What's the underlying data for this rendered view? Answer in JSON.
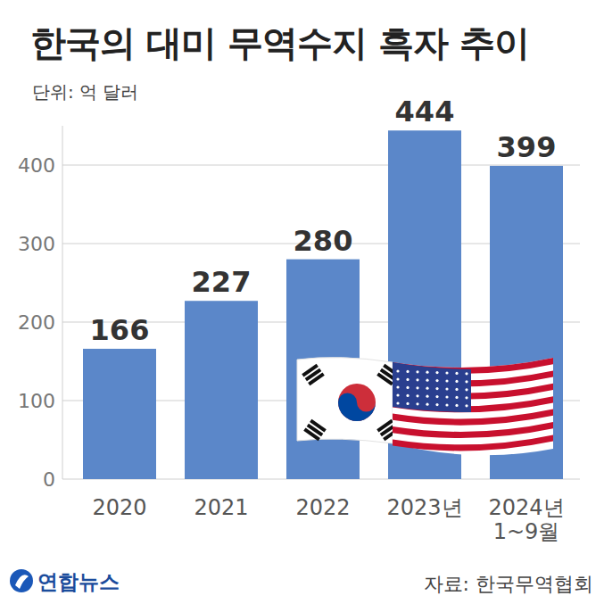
{
  "chart_data": {
    "type": "bar",
    "title": "한국의 대미 무역수지 흑자 추이",
    "subtitle": "단위: 억 달러",
    "categories": [
      "2020",
      "2021",
      "2022",
      "2023년",
      "2024년 1~9월"
    ],
    "values": [
      166,
      227,
      280,
      444,
      399
    ],
    "color": "#5b87c9",
    "ylim": [
      0,
      450
    ],
    "yticks": [
      0,
      100,
      200,
      300,
      400
    ],
    "grid": true,
    "data_labels": true,
    "source": "자료: 한국무역협회",
    "credit": "연합뉴스"
  }
}
